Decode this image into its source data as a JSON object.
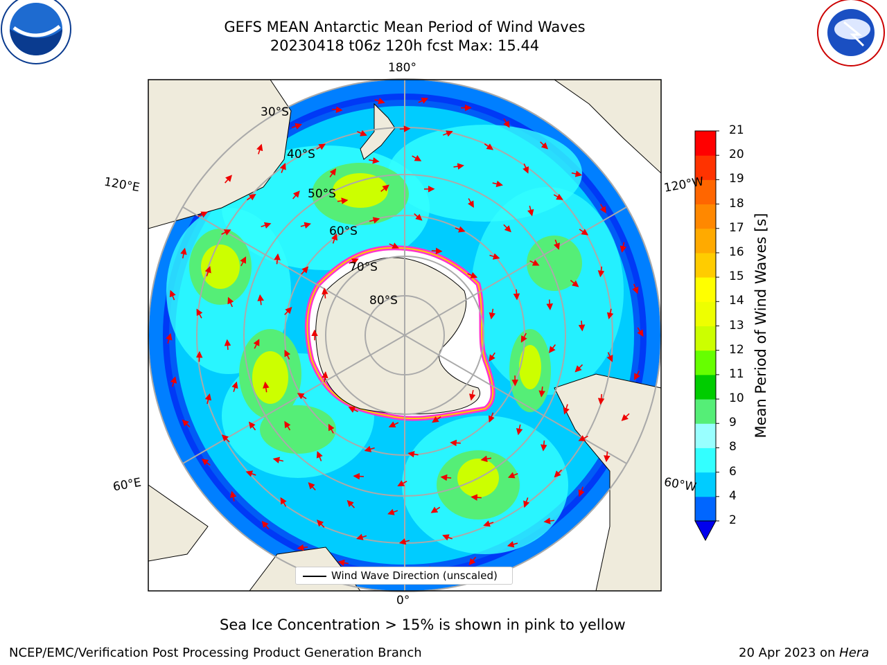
{
  "title_line1": "GEFS MEAN Antarctic Mean Period of Wind Waves",
  "title_line2": "20230418 t06z 120h fcst   Max: 15.44",
  "longitude_labels": {
    "top": "180°",
    "bottom": "0°",
    "left_upper": "120°E",
    "left_lower": "60°E",
    "right_upper": "120°W",
    "right_lower": "60°W"
  },
  "latitude_labels": [
    "30°S",
    "40°S",
    "50°S",
    "60°S",
    "70°S",
    "80°S"
  ],
  "legend": {
    "label": "Wind Wave Direction (unscaled)"
  },
  "colorbar": {
    "label": "Mean Period of Wind Waves [s]",
    "ticks": [
      2,
      4,
      6,
      8,
      9,
      10,
      11,
      12,
      13,
      14,
      15,
      16,
      17,
      18,
      19,
      20,
      21
    ],
    "colors": [
      "#0066ff",
      "#00ccff",
      "#33ffff",
      "#99ffff",
      "#55ee77",
      "#00cc00",
      "#66ff00",
      "#ccff00",
      "#eeff00",
      "#ffff00",
      "#ffcc00",
      "#ffaa00",
      "#ff8800",
      "#ff6600",
      "#ff3300",
      "#ff0000"
    ],
    "under_color": "#0000ee"
  },
  "note": "Sea Ice Concentration > 15% is shown in pink to yellow",
  "footer_left": "NCEP/EMC/Verification Post Processing Product Generation Branch",
  "footer_date": "20 Apr 2023 on ",
  "footer_machine": "Hera",
  "logos": {
    "left": "NOAA",
    "right": "NATIONAL WEATHER SERVICE"
  }
}
